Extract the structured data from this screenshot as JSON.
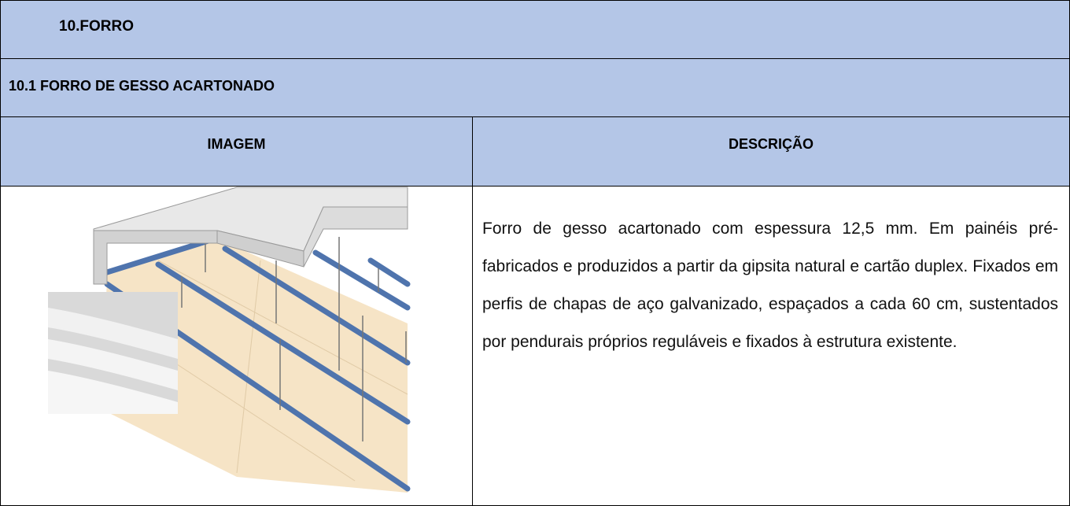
{
  "header": {
    "title": "10.FORRO",
    "subtitle": "10.1 FORRO DE GESSO ACARTONADO"
  },
  "table": {
    "headers": [
      "IMAGEM",
      "DESCRIÇÃO"
    ],
    "description": "Forro de gesso acartonado com espessura 12,5 mm. Em painéis pré-fabricados e produzidos a partir da gipsita natural e cartão duplex. Fixados em perfis de chapas de aço galvanizado, espaçados a cada 60 cm, sustentados por pendurais próprios reguláveis e fixados à estrutura existente."
  }
}
